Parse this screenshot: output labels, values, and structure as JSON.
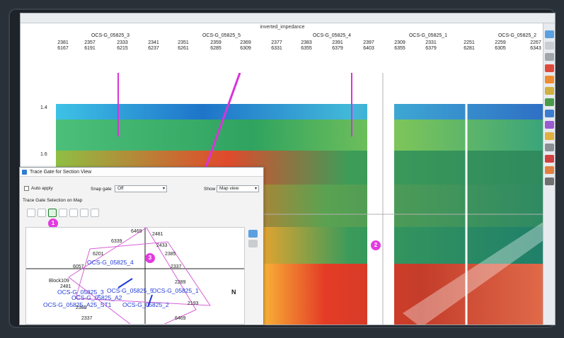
{
  "window": {
    "title": "",
    "plot_title": "inverted_impedance"
  },
  "wells": [
    "OCS-G_05825_3",
    "OCS-G_05825_5",
    "OCS-G_05825_4",
    "OCS-G_05825_1",
    "OCS-G_05825_2"
  ],
  "ticks": [
    {
      "top": "2381",
      "bottom": "6167"
    },
    {
      "top": "2357",
      "bottom": "6191"
    },
    {
      "top": "2333",
      "bottom": "6215"
    },
    {
      "top": "2341",
      "bottom": "6237"
    },
    {
      "top": "2351",
      "bottom": "6261"
    },
    {
      "top": "2359",
      "bottom": "6285"
    },
    {
      "top": "2369",
      "bottom": "6309"
    },
    {
      "top": "2377",
      "bottom": "6331"
    },
    {
      "top": "2383",
      "bottom": "6355"
    },
    {
      "top": "2391",
      "bottom": "6379"
    },
    {
      "top": "2397",
      "bottom": "6403"
    },
    {
      "top": "2309",
      "bottom": "6355"
    },
    {
      "top": "2331",
      "bottom": "6379"
    },
    {
      "top": "2251",
      "bottom": "6281"
    },
    {
      "top": "2259",
      "bottom": "6305"
    },
    {
      "top": "2267",
      "bottom": "6343"
    }
  ],
  "y_labels": [
    "1.4",
    "1.6"
  ],
  "markers": {
    "m1": "1",
    "m2": "2",
    "m3": "3"
  },
  "dialog": {
    "title": "Trace Gate for Section View",
    "auto_apply": "Auto apply",
    "snap_gate_label": "Snap gate",
    "snap_gate_value": "Off",
    "show_label": "Show",
    "show_value": "Map view",
    "section_label": "Trace Gate Selection on Map"
  },
  "map": {
    "numbers": [
      "6469",
      "2481",
      "6339",
      "2433",
      "6201",
      "2385",
      "6057",
      "2337",
      "2481",
      "2289",
      "2193",
      "2385",
      "2337",
      "6469"
    ],
    "block": "Block109",
    "north": "N",
    "wells": [
      "OCS-G_05825_4",
      "OCS-G_05825_3",
      "OCS-G_05825_A2",
      "OCS-G_05825_5",
      "OCS-G_05825_1",
      "OCS-G_05825_A25_ST1",
      "OCS-G_05825_2"
    ]
  },
  "colors": {
    "marker": "#e23be0",
    "well_line": "#d933d9"
  }
}
